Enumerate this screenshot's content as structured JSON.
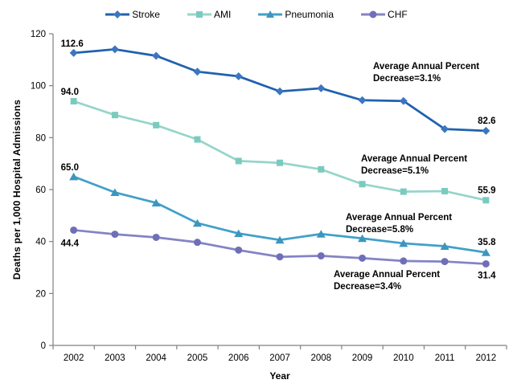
{
  "chart_data": {
    "type": "line",
    "title": "",
    "xlabel": "Year",
    "ylabel": "Deaths per 1,000 Hospital Admissions",
    "ylim": [
      0,
      120
    ],
    "ytick_step": 20,
    "grid": false,
    "legend_position": "top",
    "axis_color": "#808080",
    "categories": [
      "2002",
      "2003",
      "2004",
      "2005",
      "2006",
      "2007",
      "2008",
      "2009",
      "2010",
      "2011",
      "2012"
    ],
    "series": [
      {
        "name": "Stroke",
        "marker": "diamond",
        "line_color": "#1F62AE",
        "marker_color": "#3D76C0",
        "values": [
          112.6,
          114.0,
          111.5,
          105.4,
          103.6,
          97.8,
          99.0,
          94.4,
          94.1,
          83.3,
          82.6
        ],
        "start_label": "112.6",
        "end_label": "82.6"
      },
      {
        "name": "AMI",
        "marker": "square",
        "line_color": "#96D5CA",
        "marker_color": "#7BCABF",
        "values": [
          94.0,
          88.7,
          84.8,
          79.3,
          71.0,
          70.3,
          67.8,
          62.1,
          59.2,
          59.4,
          55.9
        ],
        "start_label": "94.0",
        "end_label": "55.9"
      },
      {
        "name": "Pneumonia",
        "marker": "triangle",
        "line_color": "#41A0C9",
        "marker_color": "#3C96BE",
        "values": [
          65.0,
          58.9,
          54.9,
          47.1,
          43.1,
          40.6,
          42.9,
          41.2,
          39.3,
          38.2,
          35.8
        ],
        "start_label": "65.0",
        "end_label": "35.8"
      },
      {
        "name": "CHF",
        "marker": "circle",
        "line_color": "#8483C5",
        "marker_color": "#6F6FB8",
        "values": [
          44.4,
          42.8,
          41.6,
          39.7,
          36.7,
          34.1,
          34.5,
          33.6,
          32.5,
          32.3,
          31.4
        ],
        "start_label": "44.4",
        "end_label": "31.4"
      }
    ],
    "annotations": [
      {
        "line1": "Average Annual Percent",
        "line2": "Decrease=3.1%"
      },
      {
        "line1": "Average Annual Percent",
        "line2": "Decrease=5.1%"
      },
      {
        "line1": "Average Annual Percent",
        "line2": "Decrease=5.8%"
      },
      {
        "line1": "Average Annual Percent",
        "line2": "Decrease=3.4%"
      }
    ]
  }
}
